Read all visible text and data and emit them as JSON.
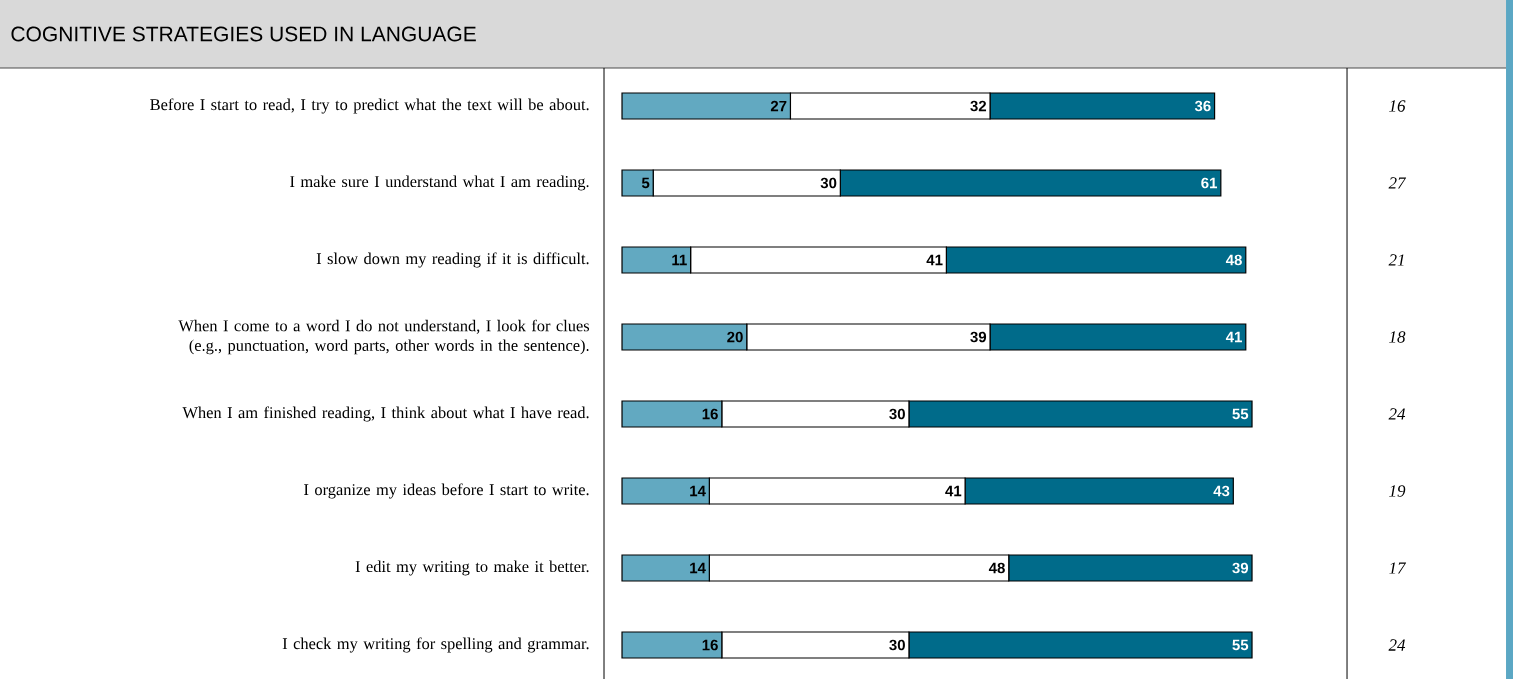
{
  "chart_data": {
    "type": "bar",
    "orientation": "horizontal",
    "stacked": true,
    "data_labels": true,
    "title": "COGNITIVE STRATEGIES USED IN LANGUAGE",
    "categories": [
      "Before I start to read, I try to predict what the text will be about.",
      "I make sure I understand what I am reading.",
      "I slow down my reading if it is difficult.",
      "When I come to a word I do not understand, I look for clues (e.g., punctuation, word parts, other words in the sentence).",
      "When I am finished reading, I think about what I have read.",
      "I organize my ideas before I start to write.",
      "I edit my writing to make it better.",
      "I check my writing for spelling and grammar."
    ],
    "series": [
      {
        "color": "#62a9c1",
        "values": [
          27,
          5,
          11,
          20,
          16,
          14,
          14,
          16
        ]
      },
      {
        "color": "#ffffff",
        "values": [
          32,
          30,
          41,
          39,
          30,
          41,
          48,
          30
        ]
      },
      {
        "color": "#006b8a",
        "values": [
          36,
          61,
          48,
          41,
          55,
          43,
          39,
          55
        ]
      }
    ],
    "annotations": [
      "16",
      "27",
      "21",
      "18",
      "24",
      "19",
      "17",
      "24"
    ]
  }
}
